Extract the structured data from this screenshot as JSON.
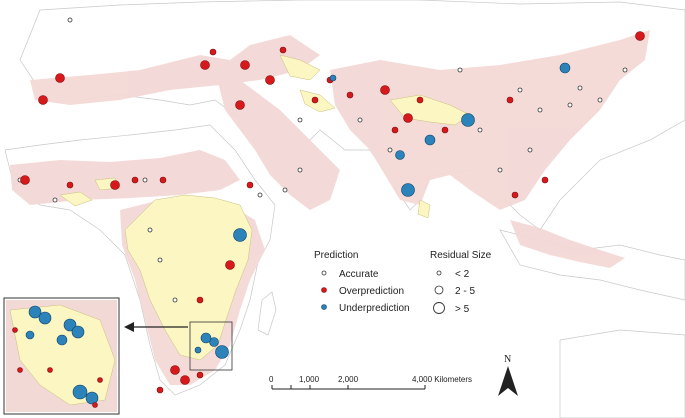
{
  "legend": {
    "prediction_title": "Prediction",
    "prediction_items": [
      {
        "label": "Accurate",
        "fill": "#ffffff",
        "stroke": "#333333"
      },
      {
        "label": "Overprediction",
        "fill": "#d7191c",
        "stroke": "#7a0c0e"
      },
      {
        "label": "Underprediction",
        "fill": "#2b83ba",
        "stroke": "#123f66"
      }
    ],
    "residual_title": "Residual Size",
    "residual_items": [
      {
        "label": "< 2",
        "size": "small"
      },
      {
        "label": "2 - 5",
        "size": "medium"
      },
      {
        "label": "> 5",
        "size": "large"
      }
    ]
  },
  "scale_bar": {
    "ticks": [
      "0",
      "1,000",
      "2,000",
      "4,000 Kilometers"
    ]
  },
  "north_arrow": {
    "label": "N"
  },
  "colors": {
    "land": "#ffffff",
    "land_outline": "#c8c8c8",
    "range_pink": "#f3d9d6",
    "suitable_yellow": "#fbf6c2",
    "accurate": "#ffffff",
    "overprediction": "#d7191c",
    "underprediction": "#2b83ba"
  }
}
